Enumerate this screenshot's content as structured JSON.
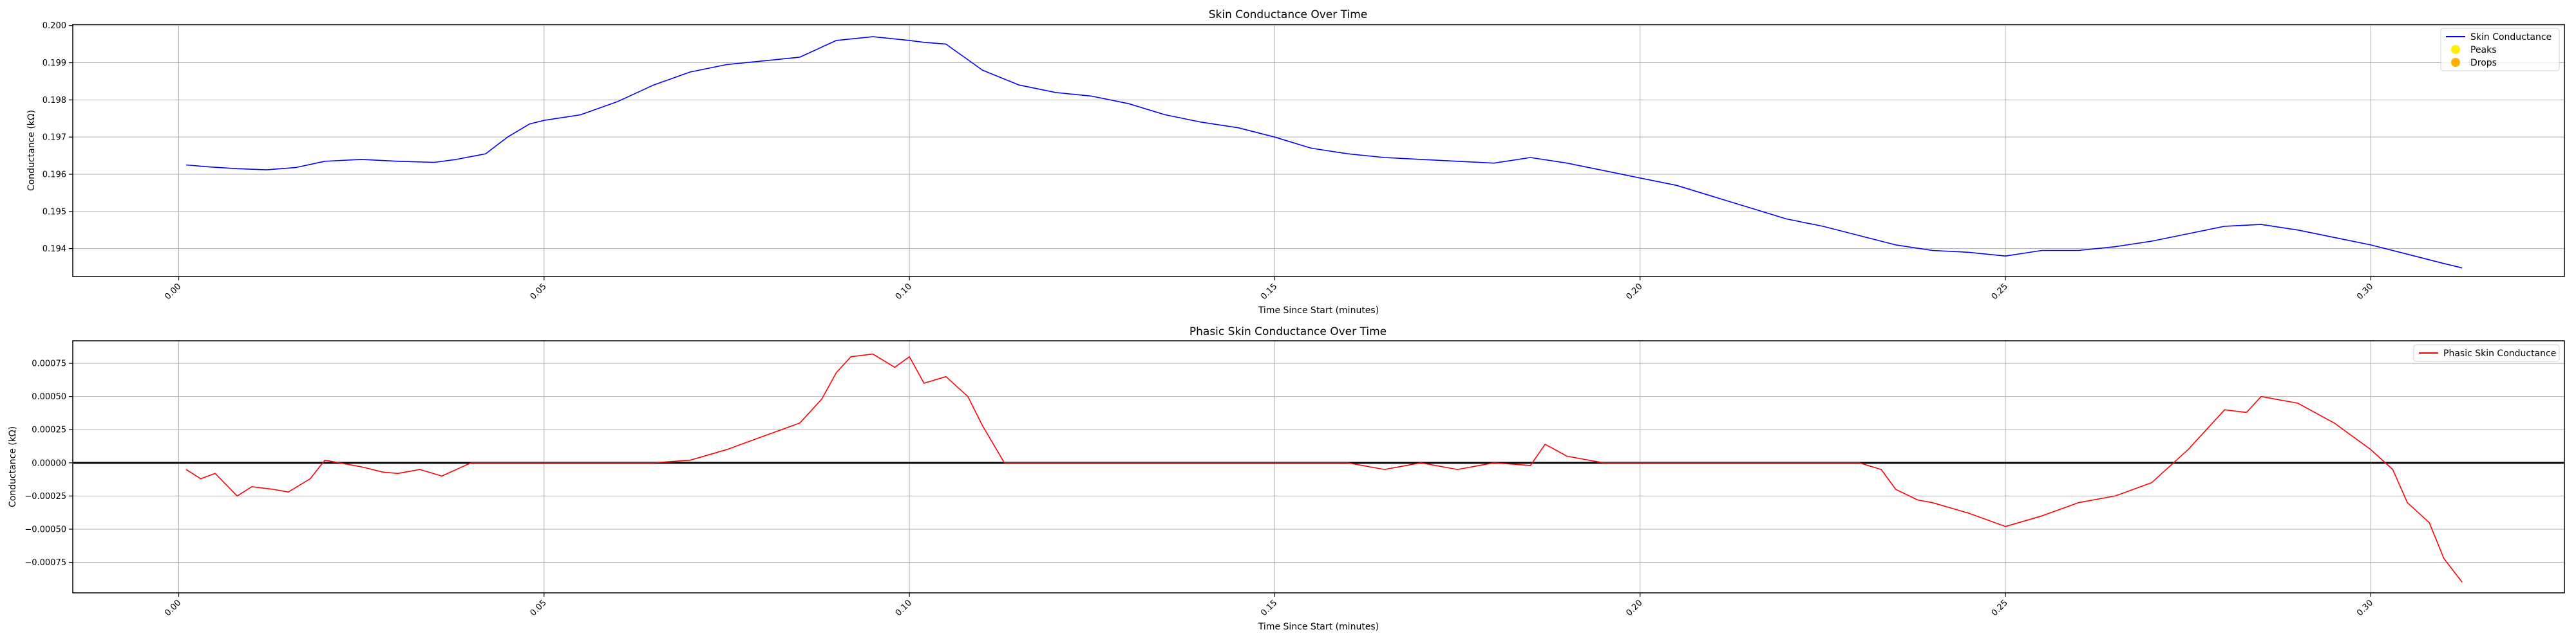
{
  "chart_data": [
    {
      "type": "line",
      "title": "Skin Conductance Over Time",
      "xlabel": "Time Since Start (minutes)",
      "ylabel": "Conductance (kΩ)",
      "xlim": [
        -0.0145,
        0.3265
      ],
      "ylim": [
        0.19325,
        0.20003
      ],
      "x_ticks": [
        0.0,
        0.05,
        0.1,
        0.15,
        0.2,
        0.25,
        0.3
      ],
      "x_tick_labels": [
        "0.00",
        "0.05",
        "0.10",
        "0.15",
        "0.20",
        "0.25",
        "0.30"
      ],
      "y_ticks": [
        0.194,
        0.195,
        0.196,
        0.197,
        0.198,
        0.199,
        0.2
      ],
      "y_tick_labels": [
        "0.194",
        "0.195",
        "0.196",
        "0.197",
        "0.198",
        "0.199",
        "0.200"
      ],
      "grid": true,
      "legend_position": "top-right",
      "legend": [
        {
          "label": "Skin Conductance",
          "kind": "line",
          "color": "#0000ff"
        },
        {
          "label": "Peaks",
          "kind": "marker",
          "color": "#ffee00"
        },
        {
          "label": "Drops",
          "kind": "marker",
          "color": "#ffb000"
        }
      ],
      "series": [
        {
          "name": "Skin Conductance",
          "color": "#0000ff",
          "x": [
            0.001,
            0.004,
            0.008,
            0.012,
            0.016,
            0.02,
            0.025,
            0.03,
            0.035,
            0.038,
            0.042,
            0.045,
            0.048,
            0.05,
            0.055,
            0.06,
            0.065,
            0.07,
            0.075,
            0.08,
            0.085,
            0.09,
            0.095,
            0.1,
            0.102,
            0.105,
            0.11,
            0.115,
            0.12,
            0.125,
            0.13,
            0.135,
            0.14,
            0.145,
            0.15,
            0.155,
            0.16,
            0.165,
            0.17,
            0.175,
            0.18,
            0.185,
            0.19,
            0.195,
            0.2,
            0.205,
            0.21,
            0.215,
            0.22,
            0.225,
            0.23,
            0.235,
            0.24,
            0.245,
            0.25,
            0.255,
            0.26,
            0.265,
            0.27,
            0.275,
            0.28,
            0.285,
            0.29,
            0.295,
            0.3,
            0.305,
            0.31,
            0.3125
          ],
          "y": [
            0.19625,
            0.1962,
            0.19615,
            0.19612,
            0.19618,
            0.19635,
            0.1964,
            0.19635,
            0.19632,
            0.1964,
            0.19655,
            0.197,
            0.19735,
            0.19745,
            0.1976,
            0.19795,
            0.1984,
            0.19875,
            0.19895,
            0.19905,
            0.19915,
            0.1996,
            0.1997,
            0.1996,
            0.19955,
            0.1995,
            0.1988,
            0.1984,
            0.1982,
            0.1981,
            0.1979,
            0.1976,
            0.1974,
            0.19725,
            0.197,
            0.1967,
            0.19655,
            0.19645,
            0.1964,
            0.19635,
            0.1963,
            0.19645,
            0.1963,
            0.1961,
            0.1959,
            0.1957,
            0.1954,
            0.1951,
            0.1948,
            0.1946,
            0.19435,
            0.1941,
            0.19395,
            0.1939,
            0.1938,
            0.19395,
            0.19395,
            0.19405,
            0.1942,
            0.1944,
            0.1946,
            0.19465,
            0.1945,
            0.1943,
            0.1941,
            0.19385,
            0.1936,
            0.19348
          ]
        }
      ]
    },
    {
      "type": "line",
      "title": "Phasic Skin Conductance Over Time",
      "xlabel": "Time Since Start (minutes)",
      "ylabel": "Conductance (kΩ)",
      "xlim": [
        -0.0145,
        0.3265
      ],
      "ylim": [
        -0.00098,
        0.00092
      ],
      "x_ticks": [
        0.0,
        0.05,
        0.1,
        0.15,
        0.2,
        0.25,
        0.3
      ],
      "x_tick_labels": [
        "0.00",
        "0.05",
        "0.10",
        "0.15",
        "0.20",
        "0.25",
        "0.30"
      ],
      "y_ticks": [
        -0.00075,
        -0.0005,
        -0.00025,
        0.0,
        0.00025,
        0.0005,
        0.00075
      ],
      "y_tick_labels": [
        "−0.00075",
        "−0.00050",
        "−0.00025",
        "0.00000",
        "0.00025",
        "0.00050",
        "0.00075"
      ],
      "grid": true,
      "zero_line": true,
      "legend_position": "top-right",
      "legend": [
        {
          "label": "Phasic Skin Conductance",
          "kind": "line",
          "color": "#ff0000"
        }
      ],
      "series": [
        {
          "name": "Phasic Skin Conductance",
          "color": "#ff0000",
          "x": [
            0.001,
            0.003,
            0.005,
            0.008,
            0.01,
            0.013,
            0.015,
            0.018,
            0.02,
            0.022,
            0.025,
            0.028,
            0.03,
            0.033,
            0.036,
            0.04,
            0.045,
            0.05,
            0.055,
            0.06,
            0.065,
            0.07,
            0.075,
            0.08,
            0.085,
            0.088,
            0.09,
            0.092,
            0.095,
            0.098,
            0.1,
            0.102,
            0.105,
            0.108,
            0.11,
            0.113,
            0.115,
            0.12,
            0.125,
            0.13,
            0.135,
            0.14,
            0.145,
            0.15,
            0.155,
            0.16,
            0.165,
            0.17,
            0.175,
            0.18,
            0.185,
            0.187,
            0.19,
            0.195,
            0.2,
            0.205,
            0.21,
            0.215,
            0.22,
            0.225,
            0.23,
            0.233,
            0.235,
            0.238,
            0.24,
            0.245,
            0.25,
            0.255,
            0.26,
            0.265,
            0.27,
            0.275,
            0.28,
            0.283,
            0.285,
            0.29,
            0.295,
            0.3,
            0.303,
            0.305,
            0.308,
            0.31,
            0.3125
          ],
          "y": [
            -5e-05,
            -0.00012,
            -8e-05,
            -0.00025,
            -0.00018,
            -0.0002,
            -0.00022,
            -0.00012,
            2e-05,
            0.0,
            -3e-05,
            -7e-05,
            -8e-05,
            -5e-05,
            -0.0001,
            0.0,
            0.0,
            0.0,
            0.0,
            0.0,
            0.0,
            2e-05,
            0.0001,
            0.0002,
            0.0003,
            0.00048,
            0.00068,
            0.0008,
            0.00082,
            0.00072,
            0.0008,
            0.0006,
            0.00065,
            0.0005,
            0.00028,
            0.0,
            0.0,
            0.0,
            0.0,
            0.0,
            0.0,
            0.0,
            0.0,
            0.0,
            0.0,
            0.0,
            -5e-05,
            0.0,
            -5e-05,
            0.0,
            -2e-05,
            0.00014,
            5e-05,
            0.0,
            0.0,
            0.0,
            0.0,
            0.0,
            0.0,
            0.0,
            0.0,
            -5e-05,
            -0.0002,
            -0.00028,
            -0.0003,
            -0.00038,
            -0.00048,
            -0.0004,
            -0.0003,
            -0.00025,
            -0.00015,
            0.0001,
            0.0004,
            0.00038,
            0.0005,
            0.00045,
            0.0003,
            0.0001,
            -5e-05,
            -0.0003,
            -0.00045,
            -0.00072,
            -0.0009
          ]
        }
      ]
    }
  ]
}
